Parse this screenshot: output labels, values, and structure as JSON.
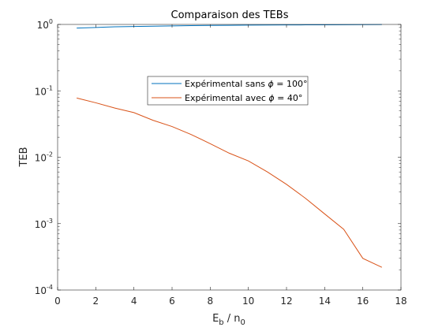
{
  "chart_data": {
    "type": "line",
    "title": "Comparaison des TEBs",
    "xlabel": {
      "base": "E",
      "base_sub": "b",
      "sep": " / ",
      "base2": "n",
      "base2_sub": "0"
    },
    "ylabel": "TEB",
    "xlim": [
      0,
      18
    ],
    "ylim": [
      0.0001,
      1
    ],
    "yscale": "log",
    "x_ticks": [
      0,
      2,
      4,
      6,
      8,
      10,
      12,
      14,
      16,
      18
    ],
    "y_ticks": [
      {
        "value": 0.0001,
        "base": "10",
        "exp": "-4"
      },
      {
        "value": 0.001,
        "base": "10",
        "exp": "-3"
      },
      {
        "value": 0.01,
        "base": "10",
        "exp": "-2"
      },
      {
        "value": 0.1,
        "base": "10",
        "exp": "-1"
      },
      {
        "value": 1,
        "base": "10",
        "exp": "0"
      }
    ],
    "grid": false,
    "legend_position": "top-center",
    "series": [
      {
        "name_parts": [
          "Expérimental sans ",
          "ϕ",
          " = 100°"
        ],
        "color": "#0072BD",
        "x": [
          1,
          2,
          3,
          4,
          5,
          6,
          7,
          8,
          9,
          10,
          11,
          12,
          13,
          14,
          15,
          16,
          17
        ],
        "y": [
          0.88,
          0.9,
          0.92,
          0.93,
          0.94,
          0.95,
          0.96,
          0.965,
          0.97,
          0.975,
          0.98,
          0.982,
          0.985,
          0.988,
          0.99,
          0.992,
          0.995
        ]
      },
      {
        "name_parts": [
          "Expérimental avec ",
          "ϕ",
          " = 40°"
        ],
        "color": "#D95319",
        "x": [
          1,
          2,
          3,
          4,
          5,
          6,
          7,
          8,
          9,
          10,
          11,
          12,
          13,
          14,
          15,
          16,
          17
        ],
        "y": [
          0.078,
          0.066,
          0.055,
          0.047,
          0.036,
          0.029,
          0.022,
          0.016,
          0.0115,
          0.0088,
          0.006,
          0.0039,
          0.0024,
          0.0014,
          0.00082,
          0.0003,
          0.00022
        ]
      }
    ]
  }
}
